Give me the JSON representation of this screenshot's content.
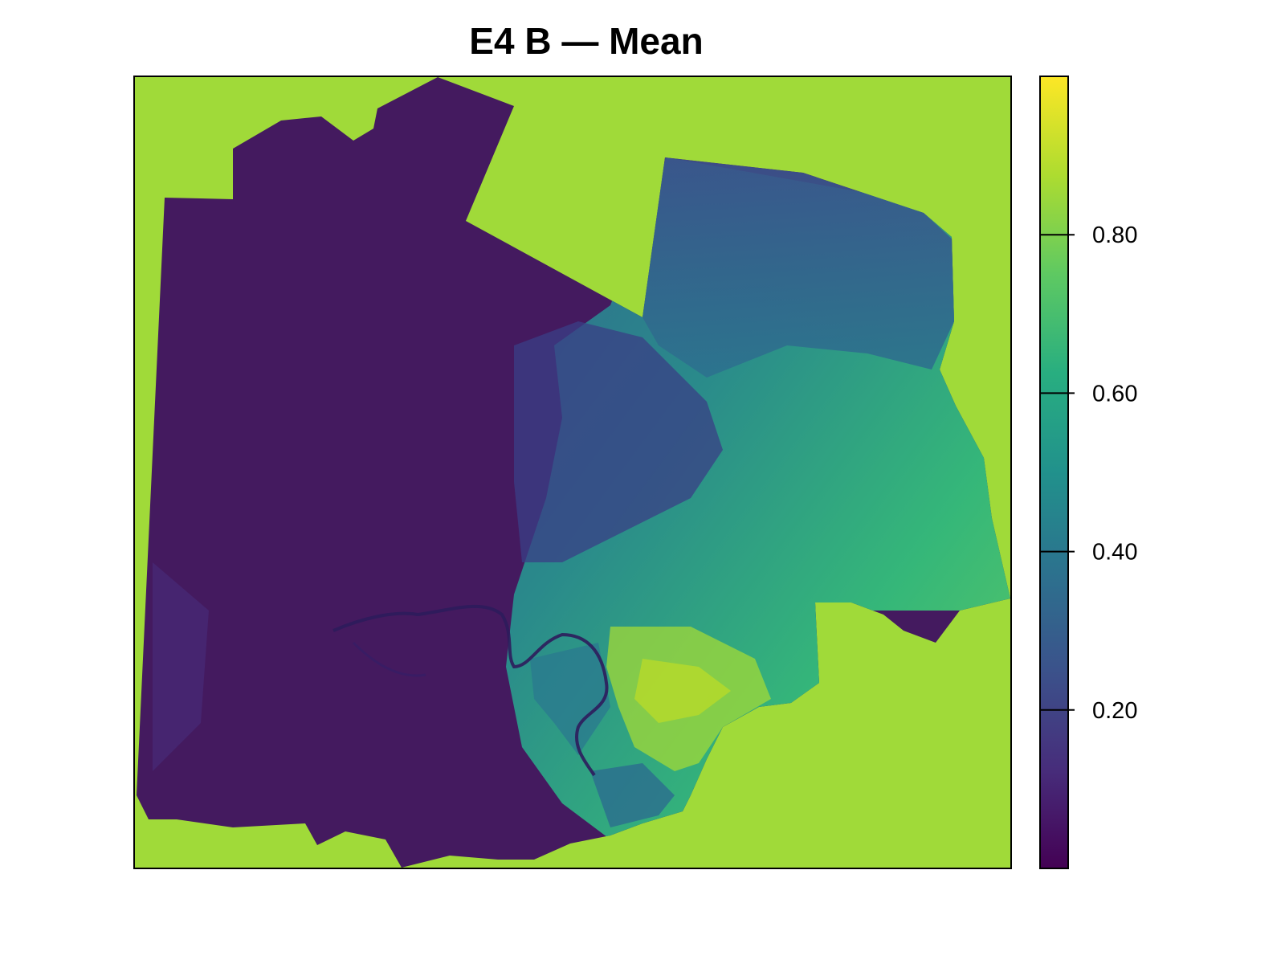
{
  "title": "E4 B — Mean",
  "colors": {
    "background_na": "#a0da39",
    "frame": "#000000",
    "river": "#2d1c5c",
    "viridis": [
      "#440154",
      "#472d7b",
      "#3b528b",
      "#2c728e",
      "#21918c",
      "#28ae80",
      "#5ec962",
      "#addc30",
      "#fde725"
    ]
  },
  "legend": {
    "min": 0.0,
    "max": 1.0,
    "ticks": [
      {
        "value": 0.2,
        "label": "0.20"
      },
      {
        "value": 0.4,
        "label": "0.40"
      },
      {
        "value": 0.6,
        "label": "0.60"
      },
      {
        "value": 0.8,
        "label": "0.80"
      }
    ]
  }
}
